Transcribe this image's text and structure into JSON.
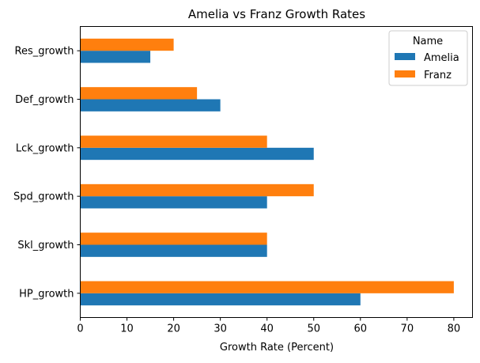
{
  "chart_data": {
    "type": "bar",
    "orientation": "horizontal",
    "title": "Amelia vs Franz Growth Rates",
    "xlabel": "Growth Rate (Percent)",
    "ylabel": "",
    "categories": [
      "HP_growth",
      "Skl_growth",
      "Spd_growth",
      "Lck_growth",
      "Def_growth",
      "Res_growth"
    ],
    "series": [
      {
        "name": "Amelia",
        "color": "#1f77b4",
        "values": [
          60,
          40,
          40,
          50,
          30,
          15
        ]
      },
      {
        "name": "Franz",
        "color": "#ff7f0e",
        "values": [
          80,
          40,
          50,
          40,
          25,
          20
        ]
      }
    ],
    "xlim": [
      0,
      84
    ],
    "xticks": [
      0,
      10,
      20,
      30,
      40,
      50,
      60,
      70,
      80
    ],
    "grid": false,
    "legend": {
      "title": "Name",
      "placement": "top-right"
    }
  }
}
